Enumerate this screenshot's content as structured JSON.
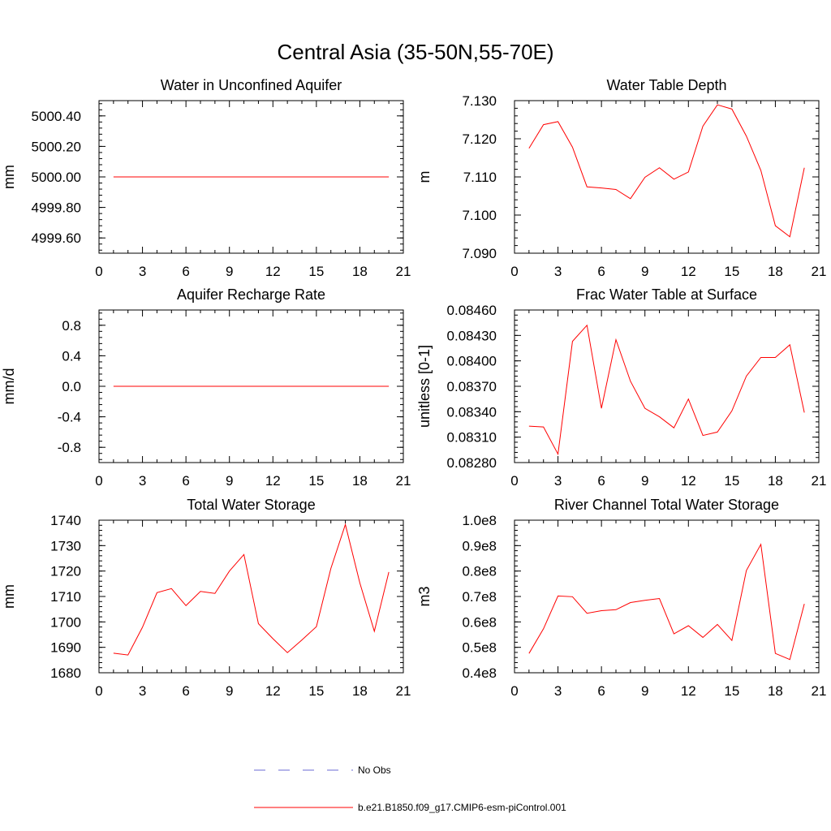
{
  "title": "Central Asia (35-50N,55-70E)",
  "legend": {
    "obs_label": "No Obs",
    "model_label": "b.e21.B1850.f09_g17.CMIP6-esm-piControl.001",
    "obs_color": "#6b6bd6",
    "model_color": "#ff0000"
  },
  "chart_data": [
    {
      "type": "line",
      "title": "Water in Unconfined Aquifer",
      "ylabel": "mm",
      "xlim": [
        0,
        21
      ],
      "ylim": [
        4999.5,
        5000.5
      ],
      "x_ticks": [
        "0",
        "3",
        "6",
        "9",
        "12",
        "15",
        "18",
        "21"
      ],
      "y_ticks": [
        "4999.60",
        "4999.80",
        "5000.00",
        "5000.20",
        "5000.40"
      ],
      "y_tick_values": [
        4999.6,
        4999.8,
        5000.0,
        5000.2,
        5000.4
      ],
      "x": [
        1,
        2,
        3,
        4,
        5,
        6,
        7,
        8,
        9,
        10,
        11,
        12,
        13,
        14,
        15,
        16,
        17,
        18,
        19,
        20
      ],
      "values": [
        5000,
        5000,
        5000,
        5000,
        5000,
        5000,
        5000,
        5000,
        5000,
        5000,
        5000,
        5000,
        5000,
        5000,
        5000,
        5000,
        5000,
        5000,
        5000,
        5000
      ]
    },
    {
      "type": "line",
      "title": "Water Table Depth",
      "ylabel": "m",
      "xlim": [
        0,
        21
      ],
      "ylim": [
        7.09,
        7.13
      ],
      "x_ticks": [
        "0",
        "3",
        "6",
        "9",
        "12",
        "15",
        "18",
        "21"
      ],
      "y_ticks": [
        "7.090",
        "7.100",
        "7.110",
        "7.120",
        "7.130"
      ],
      "y_tick_values": [
        7.09,
        7.1,
        7.11,
        7.12,
        7.13
      ],
      "x": [
        1,
        2,
        3,
        4,
        5,
        6,
        7,
        8,
        9,
        10,
        11,
        12,
        13,
        14,
        15,
        16,
        17,
        18,
        19,
        20
      ],
      "values": [
        7.1175,
        7.1237,
        7.1245,
        7.1178,
        7.1074,
        7.1071,
        7.1067,
        7.1043,
        7.1099,
        7.1124,
        7.1094,
        7.1113,
        7.1233,
        7.1289,
        7.1278,
        7.1207,
        7.1117,
        7.0972,
        7.0943,
        7.1124
      ]
    },
    {
      "type": "line",
      "title": "Aquifer Recharge Rate",
      "ylabel": "mm/d",
      "xlim": [
        0,
        21
      ],
      "ylim": [
        -1.0,
        1.0
      ],
      "x_ticks": [
        "0",
        "3",
        "6",
        "9",
        "12",
        "15",
        "18",
        "21"
      ],
      "y_ticks": [
        "-0.8",
        "-0.4",
        "0.0",
        "0.4",
        "0.8"
      ],
      "y_tick_values": [
        -0.8,
        -0.4,
        0.0,
        0.4,
        0.8
      ],
      "x": [
        1,
        2,
        3,
        4,
        5,
        6,
        7,
        8,
        9,
        10,
        11,
        12,
        13,
        14,
        15,
        16,
        17,
        18,
        19,
        20
      ],
      "values": [
        0,
        0,
        0,
        0,
        0,
        0,
        0,
        0,
        0,
        0,
        0,
        0,
        0,
        0,
        0,
        0,
        0,
        0,
        0,
        0
      ]
    },
    {
      "type": "line",
      "title": "Frac Water Table at Surface",
      "ylabel": "unitless [0-1]",
      "xlim": [
        0,
        21
      ],
      "ylim": [
        0.0828,
        0.0846
      ],
      "x_ticks": [
        "0",
        "3",
        "6",
        "9",
        "12",
        "15",
        "18",
        "21"
      ],
      "y_ticks": [
        "0.08280",
        "0.08310",
        "0.08340",
        "0.08370",
        "0.08400",
        "0.08430",
        "0.08460"
      ],
      "y_tick_values": [
        0.0828,
        0.0831,
        0.0834,
        0.0837,
        0.084,
        0.0843,
        0.0846
      ],
      "x": [
        1,
        2,
        3,
        4,
        5,
        6,
        7,
        8,
        9,
        10,
        11,
        12,
        13,
        14,
        15,
        16,
        17,
        18,
        19,
        20
      ],
      "values": [
        0.08323,
        0.08322,
        0.0829,
        0.08423,
        0.08442,
        0.08344,
        0.08425,
        0.08376,
        0.08344,
        0.08334,
        0.08321,
        0.08355,
        0.08312,
        0.08316,
        0.08341,
        0.08382,
        0.08404,
        0.08404,
        0.08419,
        0.08339
      ]
    },
    {
      "type": "line",
      "title": "Total Water Storage",
      "ylabel": "mm",
      "xlim": [
        0,
        21
      ],
      "ylim": [
        1680,
        1740
      ],
      "x_ticks": [
        "0",
        "3",
        "6",
        "9",
        "12",
        "15",
        "18",
        "21"
      ],
      "y_ticks": [
        "1680",
        "1690",
        "1700",
        "1710",
        "1720",
        "1730",
        "1740"
      ],
      "y_tick_values": [
        1680,
        1690,
        1700,
        1710,
        1720,
        1730,
        1740
      ],
      "x": [
        1,
        2,
        3,
        4,
        5,
        6,
        7,
        8,
        9,
        10,
        11,
        12,
        13,
        14,
        15,
        16,
        17,
        18,
        19,
        20
      ],
      "values": [
        1687.7,
        1687.0,
        1697.9,
        1711.5,
        1713.1,
        1706.4,
        1712.0,
        1711.2,
        1720.0,
        1726.5,
        1699.3,
        1693.4,
        1687.9,
        1692.9,
        1698.1,
        1721.0,
        1738.3,
        1715.3,
        1696.3,
        1719.6
      ]
    },
    {
      "type": "line",
      "title": "River Channel Total Water Storage",
      "ylabel": "m3",
      "xlim": [
        0,
        21
      ],
      "ylim": [
        40000000.0,
        100000000.0
      ],
      "x_ticks": [
        "0",
        "3",
        "6",
        "9",
        "12",
        "15",
        "18",
        "21"
      ],
      "y_ticks": [
        "0.4e8",
        "0.5e8",
        "0.6e8",
        "0.7e8",
        "0.8e8",
        "0.9e8",
        "1.0e8"
      ],
      "y_tick_values": [
        40000000,
        50000000,
        60000000,
        70000000,
        80000000,
        90000000,
        100000000
      ],
      "x": [
        1,
        2,
        3,
        4,
        5,
        6,
        7,
        8,
        9,
        10,
        11,
        12,
        13,
        14,
        15,
        16,
        17,
        18,
        19,
        20
      ],
      "values": [
        47600000,
        57300000,
        70200000,
        69900000,
        63400000,
        64400000,
        64800000,
        67600000,
        68500000,
        69200000,
        55300000,
        58500000,
        53900000,
        59000000,
        52700000,
        80200000,
        90500000,
        47600000,
        45200000,
        67100000
      ]
    }
  ]
}
